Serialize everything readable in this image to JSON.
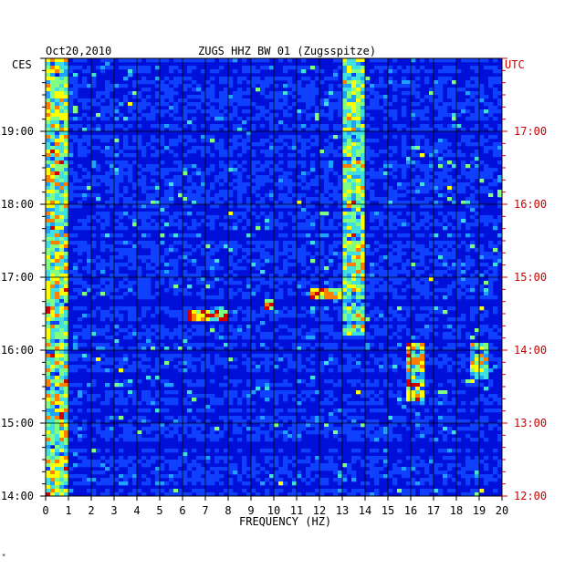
{
  "chart_data": {
    "type": "heatmap",
    "title": "ZUGS HHZ BW 01 (Zugsspitze)",
    "date": "Oct20,2010",
    "left_axis_label": "CES",
    "right_axis_label": "UTC",
    "xlabel": "FREQUENCY (HZ)",
    "xlim": [
      0,
      20
    ],
    "x_ticks": [
      "0",
      "1",
      "2",
      "3",
      "4",
      "5",
      "6",
      "7",
      "8",
      "9",
      "10",
      "11",
      "12",
      "13",
      "14",
      "15",
      "16",
      "17",
      "18",
      "19",
      "20"
    ],
    "time_range_ces_hours": [
      14.0,
      20.0
    ],
    "y_ticks_ces": [
      "14:00",
      "15:00",
      "16:00",
      "17:00",
      "18:00",
      "19:00"
    ],
    "y_ticks_utc": [
      "12:00",
      "13:00",
      "14:00",
      "15:00",
      "16:00",
      "17:00"
    ],
    "colormap": [
      "#0000a0",
      "#0010d8",
      "#1040ff",
      "#20a0ff",
      "#40e0e0",
      "#80ff80",
      "#ffff00",
      "#ff8000",
      "#d00000"
    ],
    "features": [
      {
        "freq_range": [
          0.0,
          1.0
        ],
        "time_range": [
          14.0,
          20.0
        ],
        "intensity": 0.55
      },
      {
        "freq_range": [
          13.0,
          14.0
        ],
        "time_range": [
          16.2,
          20.0
        ],
        "intensity": 0.5
      },
      {
        "freq_range": [
          15.8,
          16.6
        ],
        "time_range": [
          15.3,
          16.1
        ],
        "intensity": 0.65
      },
      {
        "freq_range": [
          18.6,
          19.4
        ],
        "time_range": [
          15.6,
          16.1
        ],
        "intensity": 0.5
      },
      {
        "freq_range": [
          6.2,
          8.0
        ],
        "time_range": [
          16.4,
          16.55
        ],
        "intensity": 0.8
      },
      {
        "freq_range": [
          11.6,
          13.0
        ],
        "time_range": [
          16.7,
          16.85
        ],
        "intensity": 0.75
      },
      {
        "freq_range": [
          9.6,
          10.0
        ],
        "time_range": [
          16.55,
          16.7
        ],
        "intensity": 0.8
      }
    ],
    "grid": true
  },
  "corner_mark": "*"
}
